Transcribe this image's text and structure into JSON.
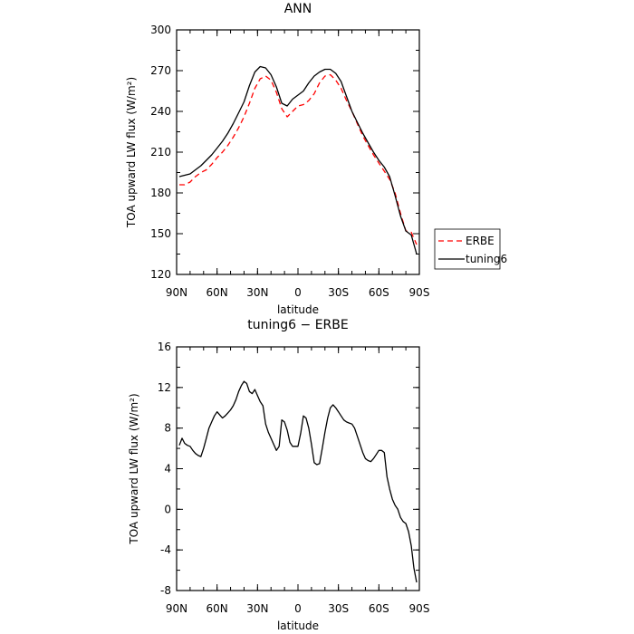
{
  "chart_data": [
    {
      "type": "line",
      "title": "ANN",
      "xlabel": "latitude",
      "ylabel": "TOA upward LW flux (W/m²)",
      "xlim": [
        90,
        -90
      ],
      "ylim": [
        120,
        300
      ],
      "yticks": [
        120,
        150,
        180,
        210,
        240,
        270,
        300
      ],
      "xtick_labels": [
        "90N",
        "60N",
        "30N",
        "0",
        "30S",
        "60S",
        "90S"
      ],
      "xticks": [
        90,
        60,
        30,
        0,
        -30,
        -60,
        -90
      ],
      "legend": {
        "position": "right",
        "entries": [
          "ERBE",
          "tuning6"
        ]
      },
      "series": [
        {
          "name": "ERBE",
          "color": "#ff0000",
          "dash": "dashed",
          "x": [
            88,
            84,
            80,
            76,
            72,
            68,
            64,
            60,
            56,
            52,
            48,
            44,
            40,
            36,
            32,
            28,
            24,
            20,
            16,
            12,
            8,
            4,
            0,
            -4,
            -8,
            -12,
            -16,
            -20,
            -24,
            -28,
            -32,
            -36,
            -40,
            -44,
            -48,
            -52,
            -56,
            -60,
            -64,
            -68,
            -72,
            -76,
            -80,
            -84,
            -88
          ],
          "y": [
            186,
            186,
            188,
            192,
            195,
            197,
            201,
            206,
            210,
            215,
            221,
            228,
            236,
            246,
            257,
            264,
            266,
            263,
            254,
            242,
            236,
            240,
            244,
            245,
            248,
            253,
            261,
            266,
            267,
            263,
            257,
            248,
            240,
            231,
            222,
            215,
            208,
            202,
            196,
            190,
            180,
            165,
            152,
            151,
            142
          ]
        },
        {
          "name": "tuning6",
          "color": "#000000",
          "dash": "solid",
          "x": [
            88,
            84,
            80,
            76,
            72,
            68,
            64,
            60,
            56,
            52,
            48,
            44,
            40,
            36,
            32,
            28,
            24,
            20,
            16,
            12,
            8,
            4,
            0,
            -4,
            -8,
            -12,
            -16,
            -20,
            -24,
            -28,
            -32,
            -36,
            -40,
            -44,
            -48,
            -52,
            -56,
            -60,
            -64,
            -68,
            -72,
            -76,
            -80,
            -84,
            -88
          ],
          "y": [
            192,
            193,
            194,
            197,
            200,
            204,
            208,
            213,
            218,
            224,
            231,
            239,
            247,
            259,
            269,
            273,
            272,
            267,
            258,
            246,
            244,
            249,
            252,
            255,
            261,
            266,
            269,
            271,
            271,
            268,
            262,
            251,
            240,
            232,
            224,
            217,
            210,
            204,
            199,
            192,
            178,
            163,
            152,
            149,
            135
          ]
        }
      ]
    },
    {
      "type": "line",
      "title": "tuning6 − ERBE",
      "xlabel": "latitude",
      "ylabel": "TOA upward LW flux (W/m²)",
      "xlim": [
        90,
        -90
      ],
      "ylim": [
        -8,
        16
      ],
      "yticks": [
        -8,
        -4,
        0,
        4,
        8,
        12,
        16
      ],
      "xtick_labels": [
        "90N",
        "60N",
        "30N",
        "0",
        "30S",
        "60S",
        "90S"
      ],
      "xticks": [
        90,
        60,
        30,
        0,
        -30,
        -60,
        -90
      ],
      "series": [
        {
          "name": "tuning6",
          "color": "#000000",
          "dash": "solid",
          "x": [
            88,
            86,
            84,
            82,
            80,
            78,
            76,
            74,
            72,
            70,
            68,
            66,
            64,
            62,
            60,
            58,
            56,
            54,
            52,
            50,
            48,
            46,
            44,
            42,
            40,
            38,
            36,
            34,
            32,
            30,
            28,
            26,
            24,
            22,
            20,
            18,
            16,
            14,
            12,
            10,
            8,
            6,
            4,
            2,
            0,
            -2,
            -4,
            -6,
            -8,
            -10,
            -12,
            -14,
            -16,
            -18,
            -20,
            -22,
            -24,
            -26,
            -28,
            -30,
            -32,
            -34,
            -36,
            -38,
            -40,
            -42,
            -44,
            -46,
            -48,
            -50,
            -52,
            -54,
            -56,
            -58,
            -60,
            -62,
            -64,
            -66,
            -68,
            -70,
            -72,
            -74,
            -76,
            -78,
            -80,
            -82,
            -84,
            -86,
            -88
          ],
          "y": [
            6.3,
            7.0,
            6.5,
            6.3,
            6.2,
            5.8,
            5.5,
            5.3,
            5.2,
            6.0,
            7.0,
            8.0,
            8.6,
            9.2,
            9.6,
            9.3,
            9.0,
            9.2,
            9.5,
            9.8,
            10.2,
            10.8,
            11.6,
            12.2,
            12.6,
            12.4,
            11.6,
            11.4,
            11.8,
            11.2,
            10.6,
            10.2,
            8.4,
            7.6,
            7.0,
            6.4,
            5.8,
            6.2,
            8.8,
            8.6,
            7.8,
            6.6,
            6.2,
            6.2,
            6.2,
            7.5,
            9.2,
            9.0,
            8.0,
            6.4,
            4.6,
            4.4,
            4.5,
            6.0,
            7.6,
            9.0,
            10.0,
            10.3,
            10.0,
            9.6,
            9.2,
            8.8,
            8.6,
            8.5,
            8.4,
            8.0,
            7.2,
            6.4,
            5.6,
            5.0,
            4.8,
            4.7,
            5.0,
            5.4,
            5.8,
            5.8,
            5.6,
            3.2,
            2.0,
            1.0,
            0.4,
            0.0,
            -0.8,
            -1.2,
            -1.4,
            -2.2,
            -3.6,
            -5.8,
            -7.2
          ]
        }
      ]
    }
  ]
}
